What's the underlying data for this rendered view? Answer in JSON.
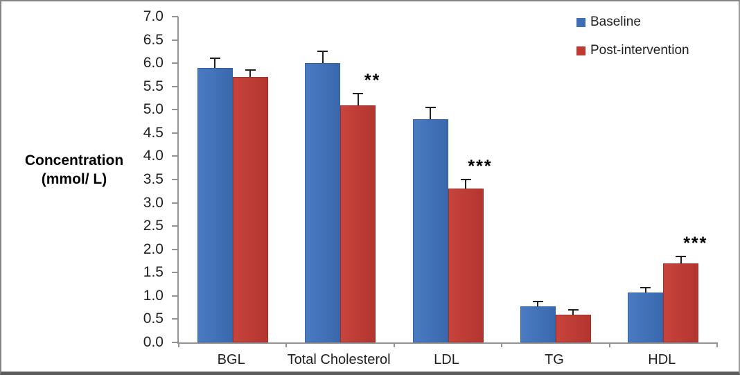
{
  "figure": {
    "background": "#ffffff",
    "frame_color": "#848484",
    "frame_bottom_color": "#5c5c5c"
  },
  "chart_data": {
    "type": "bar",
    "title": "",
    "categories": [
      "BGL",
      "Total Cholesterol",
      "LDL",
      "TG",
      "HDL"
    ],
    "series": [
      {
        "name": "Baseline",
        "color": "#3E6FB6",
        "values": [
          5.9,
          6.0,
          4.8,
          0.78,
          1.07
        ],
        "errors": [
          0.2,
          0.25,
          0.25,
          0.1,
          0.1
        ]
      },
      {
        "name": "Post-intervention",
        "color": "#BE3A33",
        "values": [
          5.7,
          5.1,
          3.3,
          0.6,
          1.7
        ],
        "errors": [
          0.15,
          0.25,
          0.2,
          0.1,
          0.15
        ]
      }
    ],
    "significance": {
      "applies_to_series": "Post-intervention",
      "labels": [
        "",
        "**",
        "***",
        "",
        "***"
      ]
    },
    "error_bars": "upper only, T-caps",
    "ylabel": "Concentration (mmol/ L)",
    "ylabel_lines": [
      "Concentration",
      "(mmol/ L)"
    ],
    "xlabel": "",
    "ylim": [
      0.0,
      7.0
    ],
    "ytick_step": 0.5,
    "ytick_format": "one-decimal",
    "grid": false,
    "legend_position": "top-right",
    "axis_color": "#939393",
    "error_bar_color": "#1f1f1f",
    "text_color": "#1f1f1f"
  }
}
